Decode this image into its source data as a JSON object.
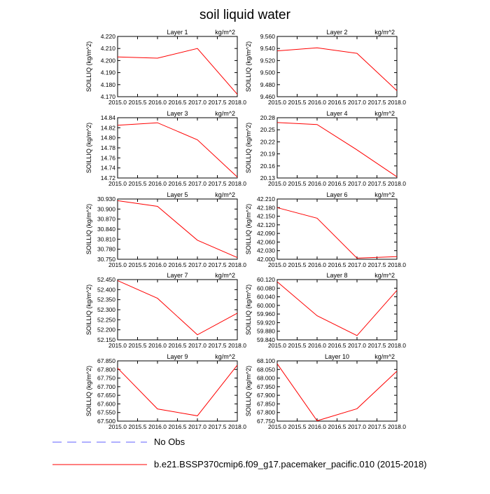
{
  "title": "soil liquid water",
  "colors": {
    "series": "#ff0000",
    "obs": "#8080ff",
    "axis": "#000000"
  },
  "legend": {
    "items": [
      {
        "label": "No Obs",
        "style": "dashed",
        "color": "#8080ff"
      },
      {
        "label": "b.e21.BSSP370cmip6.f09_g17.pacemaker_pacific.010 (2015-2018)",
        "style": "solid",
        "color": "#ff0000"
      }
    ]
  },
  "chart_data": [
    {
      "type": "line",
      "title": "Layer 1",
      "units": "kg/m^2",
      "ylabel": "SOILLIQ  (kg/m^2)",
      "x": [
        2015,
        2016,
        2017,
        2018
      ],
      "xlim": [
        2015,
        2018
      ],
      "xticks": [
        "2015.0",
        "2015.5",
        "2016.0",
        "2016.5",
        "2017.0",
        "2017.5",
        "2018.0"
      ],
      "ylim": [
        4.17,
        4.22
      ],
      "yticks": [
        "4.170",
        "4.180",
        "4.190",
        "4.200",
        "4.210",
        "4.220"
      ],
      "values": [
        4.203,
        4.202,
        4.21,
        4.172
      ]
    },
    {
      "type": "line",
      "title": "Layer 2",
      "units": "kg/m^2",
      "ylabel": "SOILLIQ  (kg/m^2)",
      "x": [
        2015,
        2016,
        2017,
        2018
      ],
      "xlim": [
        2015,
        2018
      ],
      "xticks": [
        "2015.0",
        "2015.5",
        "2016.0",
        "2016.5",
        "2017.0",
        "2017.5",
        "2018.0"
      ],
      "ylim": [
        9.46,
        9.56
      ],
      "yticks": [
        "9.460",
        "9.480",
        "9.500",
        "9.520",
        "9.540",
        "9.560"
      ],
      "values": [
        9.536,
        9.541,
        9.532,
        9.47
      ]
    },
    {
      "type": "line",
      "title": "Layer 3",
      "units": "kg/m^2",
      "ylabel": "SOILLIQ  (kg/m^2)",
      "x": [
        2015,
        2016,
        2017,
        2018
      ],
      "xlim": [
        2015,
        2018
      ],
      "xticks": [
        "2015.0",
        "2015.5",
        "2016.0",
        "2016.5",
        "2017.0",
        "2017.5",
        "2018.0"
      ],
      "ylim": [
        14.72,
        14.84
      ],
      "yticks": [
        "14.72",
        "14.74",
        "14.76",
        "14.78",
        "14.80",
        "14.82",
        "14.84"
      ],
      "values": [
        14.825,
        14.83,
        14.796,
        14.722
      ]
    },
    {
      "type": "line",
      "title": "Layer 4",
      "units": "kg/m^2",
      "ylabel": "SOILLIQ  (kg/m^2)",
      "x": [
        2015,
        2016,
        2017,
        2018
      ],
      "xlim": [
        2015,
        2018
      ],
      "xticks": [
        "2015.0",
        "2015.5",
        "2016.0",
        "2016.5",
        "2017.0",
        "2017.5",
        "2018.0"
      ],
      "ylim": [
        20.13,
        20.28
      ],
      "yticks": [
        "20.13",
        "20.16",
        "20.19",
        "20.22",
        "20.25",
        "20.28"
      ],
      "values": [
        20.268,
        20.263,
        20.2,
        20.133
      ]
    },
    {
      "type": "line",
      "title": "Layer 5",
      "units": "kg/m^2",
      "ylabel": "SOILLIQ  (kg/m^2)",
      "x": [
        2015,
        2016,
        2017,
        2018
      ],
      "xlim": [
        2015,
        2018
      ],
      "xticks": [
        "2015.0",
        "2015.5",
        "2016.0",
        "2016.5",
        "2017.0",
        "2017.5",
        "2018.0"
      ],
      "ylim": [
        30.75,
        30.93
      ],
      "yticks": [
        "30.750",
        "30.780",
        "30.810",
        "30.840",
        "30.870",
        "30.900",
        "30.930"
      ],
      "values": [
        30.925,
        30.908,
        30.807,
        30.755
      ]
    },
    {
      "type": "line",
      "title": "Layer 6",
      "units": "kg/m^2",
      "ylabel": "SOILLIQ  (kg/m^2)",
      "x": [
        2015,
        2016,
        2017,
        2018
      ],
      "xlim": [
        2015,
        2018
      ],
      "xticks": [
        "2015.0",
        "2015.5",
        "2016.0",
        "2016.5",
        "2017.0",
        "2017.5",
        "2018.0"
      ],
      "ylim": [
        42.0,
        42.21
      ],
      "yticks": [
        "42.000",
        "42.030",
        "42.060",
        "42.090",
        "42.120",
        "42.150",
        "42.180",
        "42.210"
      ],
      "values": [
        42.18,
        42.143,
        42.004,
        42.009
      ]
    },
    {
      "type": "line",
      "title": "Layer 7",
      "units": "kg/m^2",
      "ylabel": "SOILLIQ  (kg/m^2)",
      "x": [
        2015,
        2016,
        2017,
        2018
      ],
      "xlim": [
        2015,
        2018
      ],
      "xticks": [
        "2015.0",
        "2015.5",
        "2016.0",
        "2016.5",
        "2017.0",
        "2017.5",
        "2018.0"
      ],
      "ylim": [
        52.15,
        52.45
      ],
      "yticks": [
        "52.150",
        "52.200",
        "52.250",
        "52.300",
        "52.350",
        "52.400",
        "52.450"
      ],
      "values": [
        52.445,
        52.357,
        52.175,
        52.283
      ]
    },
    {
      "type": "line",
      "title": "Layer 8",
      "units": "kg/m^2",
      "ylabel": "SOILLIQ  (kg/m^2)",
      "x": [
        2015,
        2016,
        2017,
        2018
      ],
      "xlim": [
        2015,
        2018
      ],
      "xticks": [
        "2015.0",
        "2015.5",
        "2016.0",
        "2016.5",
        "2017.0",
        "2017.5",
        "2018.0"
      ],
      "ylim": [
        59.84,
        60.12
      ],
      "yticks": [
        "59.840",
        "59.880",
        "59.920",
        "59.960",
        "60.000",
        "60.040",
        "60.080",
        "60.120"
      ],
      "values": [
        60.11,
        59.952,
        59.86,
        60.07
      ]
    },
    {
      "type": "line",
      "title": "Layer 9",
      "units": "kg/m^2",
      "ylabel": "SOILLIQ  (kg/m^2)",
      "x": [
        2015,
        2016,
        2017,
        2018
      ],
      "xlim": [
        2015,
        2018
      ],
      "xticks": [
        "2015.0",
        "2015.5",
        "2016.0",
        "2016.5",
        "2017.0",
        "2017.5",
        "2018.0"
      ],
      "ylim": [
        67.5,
        67.85
      ],
      "yticks": [
        "67.500",
        "67.550",
        "67.600",
        "67.650",
        "67.700",
        "67.750",
        "67.800",
        "67.850"
      ],
      "values": [
        67.808,
        67.571,
        67.531,
        67.825
      ]
    },
    {
      "type": "line",
      "title": "Layer 10",
      "units": "kg/m^2",
      "ylabel": "SOILLIQ  (kg/m^2)",
      "x": [
        2015,
        2016,
        2017,
        2018
      ],
      "xlim": [
        2015,
        2018
      ],
      "xticks": [
        "2015.0",
        "2015.5",
        "2016.0",
        "2016.5",
        "2017.0",
        "2017.5",
        "2018.0"
      ],
      "ylim": [
        67.75,
        68.1
      ],
      "yticks": [
        "67.750",
        "67.800",
        "67.850",
        "67.900",
        "67.950",
        "68.000",
        "68.050",
        "68.100"
      ],
      "values": [
        68.083,
        67.752,
        67.822,
        68.04
      ]
    }
  ]
}
